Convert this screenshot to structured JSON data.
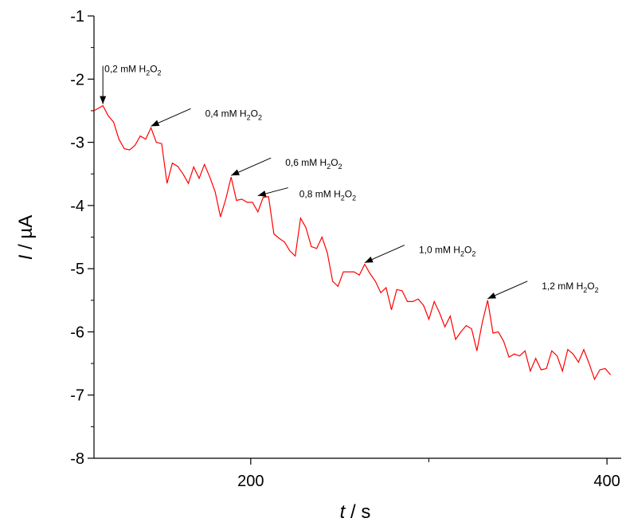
{
  "chart_data": {
    "type": "line",
    "title": "",
    "xlabel_italic": "t",
    "xlabel_unit": " / s",
    "ylabel_italic": "I",
    "ylabel_unit": " / µA",
    "xlim": [
      112,
      408
    ],
    "ylim": [
      -8,
      -1
    ],
    "x_major_ticks": [
      200,
      400
    ],
    "x_minor_ticks": [
      100,
      300
    ],
    "y_ticks": [
      -8,
      -7,
      -6,
      -5,
      -4,
      -3,
      -2,
      -1
    ],
    "y_tick_labels": [
      "-8",
      "-7",
      "-6",
      "-5",
      "-4",
      "-3",
      "-2",
      "-1"
    ],
    "x_tick_labels": [
      "200",
      "400"
    ],
    "grid": false,
    "legend": "none",
    "series_color": "#ff0000",
    "series": [
      {
        "x": [
          112,
          117,
          120,
          123,
          126,
          129,
          132,
          135,
          138,
          141,
          144,
          147,
          150,
          153,
          156,
          159,
          162,
          165,
          168,
          171,
          174,
          177,
          180,
          183,
          186,
          189,
          192,
          195,
          198,
          201,
          204,
          207,
          210,
          213,
          216,
          219,
          222,
          225,
          228,
          231,
          234,
          237,
          240,
          243,
          246,
          249,
          252,
          255,
          258,
          261,
          264,
          267,
          270,
          273,
          276,
          279,
          282,
          285,
          288,
          291,
          294,
          297,
          300,
          303,
          306,
          309,
          312,
          315,
          318,
          321,
          324,
          327,
          330,
          333,
          336,
          339,
          342,
          345,
          348,
          351,
          354,
          357,
          360,
          363,
          366,
          369,
          372,
          375,
          378,
          381,
          384,
          387,
          390,
          393,
          396,
          399,
          402
        ],
        "y": [
          -2.5,
          -2.42,
          -2.58,
          -2.68,
          -2.95,
          -3.1,
          -3.12,
          -3.05,
          -2.9,
          -2.95,
          -2.77,
          -3.0,
          -3.02,
          -3.65,
          -3.33,
          -3.38,
          -3.5,
          -3.65,
          -3.39,
          -3.57,
          -3.35,
          -3.55,
          -3.78,
          -4.18,
          -3.9,
          -3.55,
          -3.92,
          -3.9,
          -3.95,
          -3.95,
          -4.1,
          -3.87,
          -3.86,
          -4.45,
          -4.52,
          -4.58,
          -4.72,
          -4.8,
          -4.2,
          -4.35,
          -4.65,
          -4.68,
          -4.5,
          -4.75,
          -5.2,
          -5.28,
          -5.05,
          -5.05,
          -5.05,
          -5.1,
          -4.93,
          -5.08,
          -5.2,
          -5.38,
          -5.3,
          -5.65,
          -5.33,
          -5.35,
          -5.52,
          -5.52,
          -5.48,
          -5.58,
          -5.8,
          -5.52,
          -5.7,
          -5.92,
          -5.75,
          -6.12,
          -6.0,
          -5.9,
          -5.95,
          -6.3,
          -5.85,
          -5.5,
          -6.02,
          -6.0,
          -6.15,
          -6.4,
          -6.35,
          -6.38,
          -6.3,
          -6.62,
          -6.42,
          -6.6,
          -6.58,
          -6.3,
          -6.38,
          -6.62,
          -6.28,
          -6.35,
          -6.48,
          -6.28,
          -6.5,
          -6.75,
          -6.6,
          -6.58,
          -6.68
        ]
      }
    ],
    "annotations": [
      {
        "prefix": "0,2 mM H",
        "sub1": "2",
        "mid": "O",
        "sub2": "2",
        "x": 117,
        "y": -2.42,
        "dir": "down"
      },
      {
        "prefix": "0,4 mM H",
        "sub1": "2",
        "mid": "O",
        "sub2": "2",
        "x": 144,
        "y": -2.77,
        "dir": "upright"
      },
      {
        "prefix": "0,6 mM H",
        "sub1": "2",
        "mid": "O",
        "sub2": "2",
        "x": 189,
        "y": -3.55,
        "dir": "upright"
      },
      {
        "prefix": "0,8 mM H",
        "sub1": "2",
        "mid": "O",
        "sub2": "2",
        "x": 204,
        "y": -3.87,
        "dir": "right"
      },
      {
        "prefix": "1,0 mM H",
        "sub1": "2",
        "mid": "O",
        "sub2": "2",
        "x": 264,
        "y": -4.93,
        "dir": "upright"
      },
      {
        "prefix": "1,2 mM H",
        "sub1": "2",
        "mid": "O",
        "sub2": "2",
        "x": 333,
        "y": -5.5,
        "dir": "upright"
      }
    ]
  }
}
